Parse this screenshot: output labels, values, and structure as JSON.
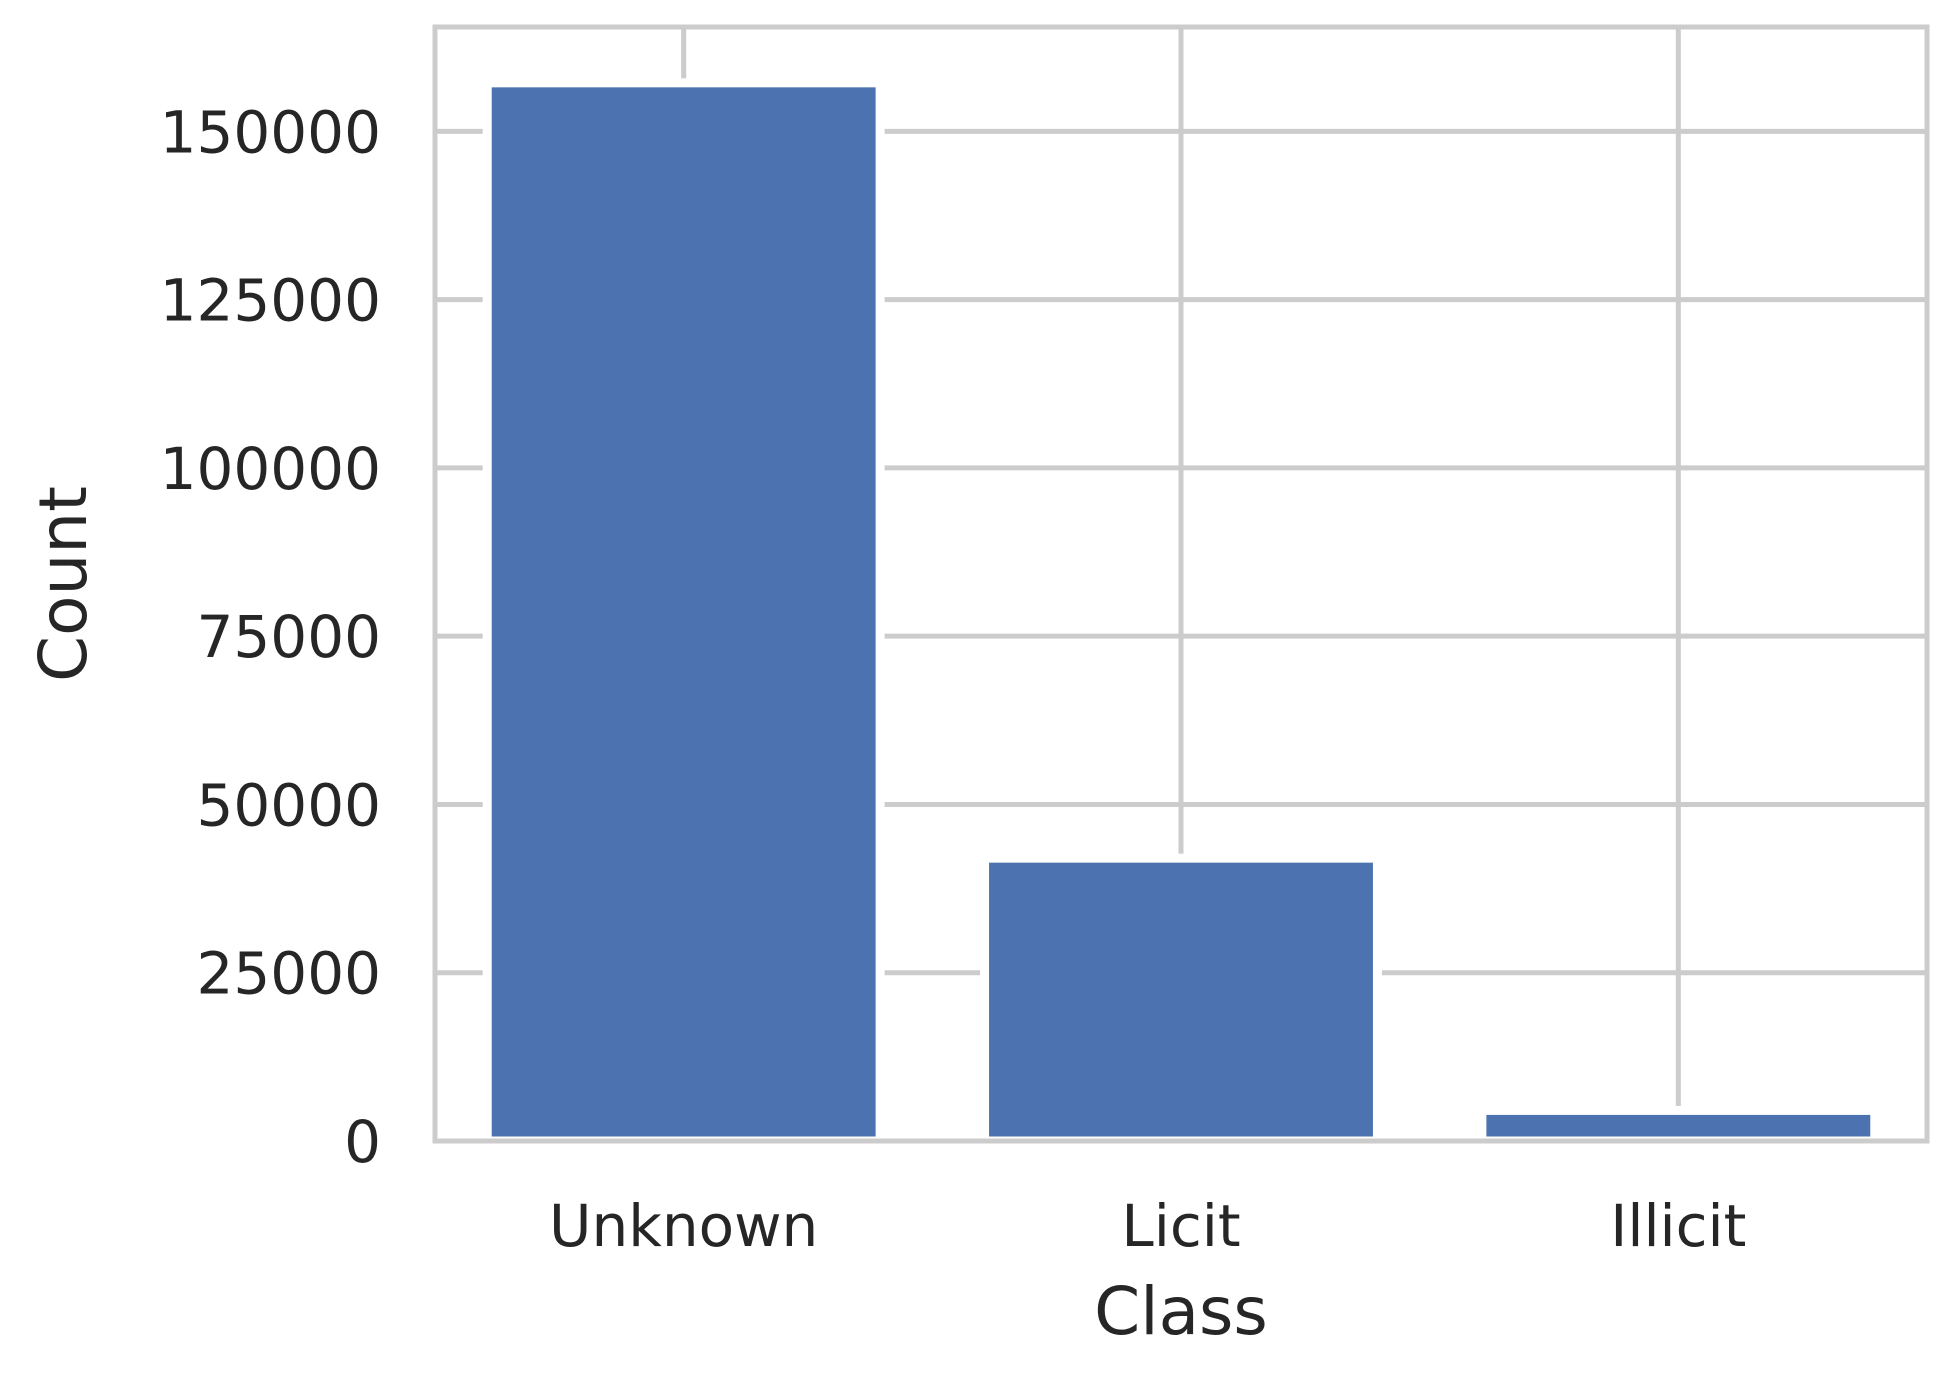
{
  "chart_data": {
    "type": "bar",
    "categories": [
      "Unknown",
      "Licit",
      "Illicit"
    ],
    "values": [
      157205,
      42019,
      4545
    ],
    "xlabel": "Class",
    "ylabel": "Count",
    "ylim": [
      0,
      165500
    ],
    "yticks": [
      0,
      25000,
      50000,
      75000,
      100000,
      125000,
      150000
    ],
    "ytick_labels": [
      "0",
      "25000",
      "50000",
      "75000",
      "100000",
      "125000",
      "150000"
    ],
    "grid": true,
    "colors": {
      "bar": "#4c72b0",
      "grid": "#cccccc",
      "text": "#262626"
    }
  }
}
